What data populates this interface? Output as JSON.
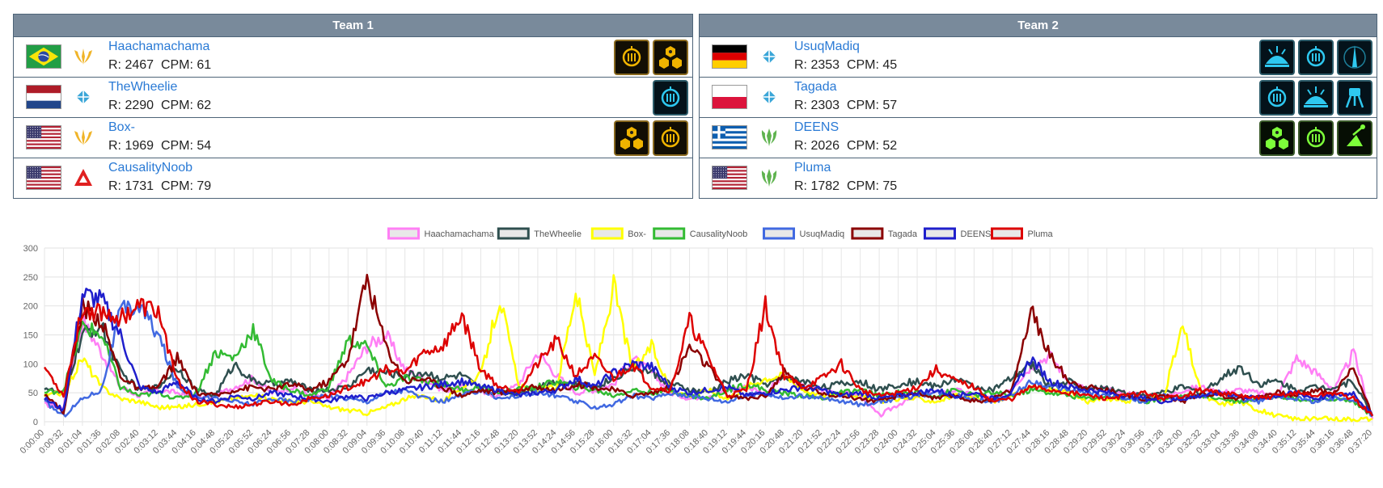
{
  "teams": [
    {
      "title": "Team 1",
      "players": [
        {
          "name": "Haachamachama",
          "rating": "2467",
          "cpm": "61",
          "flag": "brazil",
          "race": "protoss-icon",
          "units": [
            {
              "icon": "upgrade-icon",
              "style": "gold"
            },
            {
              "icon": "hexagon-cluster-icon",
              "style": "gold"
            }
          ]
        },
        {
          "name": "TheWheelie",
          "rating": "2290",
          "cpm": "62",
          "flag": "netherlands",
          "race": "terran-icon",
          "units": [
            {
              "icon": "upgrade-icon",
              "style": "cyan"
            }
          ]
        },
        {
          "name": "Box-",
          "rating": "1969",
          "cpm": "54",
          "flag": "usa",
          "race": "protoss-icon",
          "units": [
            {
              "icon": "hexagon-cluster-icon",
              "style": "gold"
            },
            {
              "icon": "upgrade-icon",
              "style": "gold"
            }
          ]
        },
        {
          "name": "CausalityNoob",
          "rating": "1731",
          "cpm": "79",
          "flag": "usa",
          "race": "random-icon",
          "units": []
        }
      ]
    },
    {
      "title": "Team 2",
      "players": [
        {
          "name": "UsuqMadiq",
          "rating": "2353",
          "cpm": "45",
          "flag": "germany",
          "race": "terran-icon",
          "units": [
            {
              "icon": "burst-icon",
              "style": "cyan"
            },
            {
              "icon": "upgrade-icon",
              "style": "cyan"
            },
            {
              "icon": "tower-icon",
              "style": "cyan"
            }
          ]
        },
        {
          "name": "Tagada",
          "rating": "2303",
          "cpm": "57",
          "flag": "poland",
          "race": "terran-icon",
          "units": [
            {
              "icon": "upgrade-icon",
              "style": "cyan"
            },
            {
              "icon": "burst-icon",
              "style": "cyan"
            },
            {
              "icon": "walker-icon",
              "style": "cyan"
            }
          ]
        },
        {
          "name": "DEENS",
          "rating": "2026",
          "cpm": "52",
          "flag": "greece",
          "race": "zerg-icon",
          "units": [
            {
              "icon": "hexagon-cluster-icon",
              "style": "green"
            },
            {
              "icon": "upgrade-icon",
              "style": "green"
            },
            {
              "icon": "antenna-icon",
              "style": "green"
            }
          ]
        },
        {
          "name": "Pluma",
          "rating": "1782",
          "cpm": "75",
          "flag": "usa",
          "race": "zerg-icon",
          "units": []
        }
      ]
    }
  ],
  "stats": {
    "rating_prefix": "R:",
    "cpm_prefix": "CPM:"
  },
  "chart_data": {
    "type": "line",
    "title": "",
    "xlabel": "",
    "ylabel": "",
    "ylim": [
      0,
      300
    ],
    "yticks": [
      0,
      50,
      100,
      150,
      200,
      250,
      300
    ],
    "grid": true,
    "legend_position": "top",
    "x_ticks": [
      "0:00:00",
      "0:00:32",
      "0:01:04",
      "0:01:36",
      "0:02:08",
      "0:02:40",
      "0:03:12",
      "0:03:44",
      "0:04:16",
      "0:04:48",
      "0:05:20",
      "0:05:52",
      "0:06:24",
      "0:06:56",
      "0:07:28",
      "0:08:00",
      "0:08:32",
      "0:09:04",
      "0:09:36",
      "0:10:08",
      "0:10:40",
      "0:11:12",
      "0:11:44",
      "0:12:16",
      "0:12:48",
      "0:13:20",
      "0:13:52",
      "0:14:24",
      "0:14:56",
      "0:15:28",
      "0:16:00",
      "0:16:32",
      "0:17:04",
      "0:17:36",
      "0:18:08",
      "0:18:40",
      "0:19:12",
      "0:19:44",
      "0:20:16",
      "0:20:48",
      "0:21:20",
      "0:21:52",
      "0:22:24",
      "0:22:56",
      "0:23:28",
      "0:24:00",
      "0:24:32",
      "0:25:04",
      "0:25:36",
      "0:26:08",
      "0:26:40",
      "0:27:12",
      "0:27:44",
      "0:28:16",
      "0:28:48",
      "0:29:20",
      "0:29:52",
      "0:30:24",
      "0:30:56",
      "0:31:28",
      "0:32:00",
      "0:32:32",
      "0:33:04",
      "0:33:36",
      "0:34:08",
      "0:34:40",
      "0:35:12",
      "0:35:44",
      "0:36:16",
      "0:36:48",
      "0:37:20"
    ],
    "x_seconds_at_keypoints_note": "",
    "series": [
      {
        "name": "Haachamachama",
        "color": "#ff7ff5",
        "values": [
          30,
          25,
          175,
          120,
          60,
          45,
          55,
          50,
          40,
          45,
          60,
          75,
          50,
          60,
          45,
          40,
          80,
          130,
          150,
          90,
          75,
          55,
          60,
          50,
          45,
          65,
          120,
          80,
          50,
          55,
          65,
          110,
          85,
          50,
          40,
          45,
          55,
          60,
          50,
          80,
          60,
          55,
          50,
          45,
          10,
          30,
          45,
          50,
          55,
          45,
          40,
          60,
          95,
          115,
          70,
          55,
          55,
          50,
          45,
          40,
          55,
          60,
          50,
          55,
          50,
          45,
          110,
          85,
          55,
          120,
          5
        ]
      },
      {
        "name": "TheWheelie",
        "color": "#2f4f4f",
        "values": [
          60,
          45,
          150,
          165,
          85,
          55,
          60,
          95,
          55,
          45,
          100,
          70,
          65,
          70,
          55,
          55,
          60,
          90,
          85,
          80,
          85,
          75,
          80,
          55,
          50,
          50,
          60,
          70,
          65,
          60,
          75,
          95,
          85,
          65,
          55,
          50,
          70,
          80,
          65,
          75,
          70,
          60,
          65,
          70,
          55,
          65,
          70,
          60,
          75,
          60,
          55,
          75,
          100,
          60,
          70,
          55,
          60,
          50,
          45,
          50,
          60,
          50,
          75,
          95,
          65,
          70,
          55,
          60,
          60,
          70,
          10
        ]
      },
      {
        "name": "Box-",
        "color": "#ffff00",
        "values": [
          45,
          50,
          110,
          60,
          40,
          35,
          25,
          25,
          30,
          35,
          40,
          45,
          40,
          35,
          35,
          25,
          20,
          15,
          25,
          40,
          45,
          35,
          60,
          80,
          215,
          60,
          55,
          60,
          225,
          80,
          235,
          90,
          130,
          55,
          45,
          55,
          40,
          60,
          75,
          80,
          55,
          45,
          50,
          45,
          35,
          40,
          40,
          35,
          45,
          40,
          35,
          45,
          60,
          55,
          50,
          35,
          40,
          35,
          40,
          45,
          165,
          45,
          30,
          35,
          20,
          10,
          5,
          5,
          5,
          5,
          5
        ]
      },
      {
        "name": "CausalityNoob",
        "color": "#33bb33",
        "values": [
          50,
          55,
          165,
          150,
          60,
          45,
          50,
          40,
          50,
          120,
          110,
          160,
          70,
          55,
          45,
          60,
          140,
          130,
          60,
          75,
          70,
          65,
          55,
          60,
          50,
          55,
          60,
          70,
          60,
          55,
          45,
          55,
          50,
          55,
          45,
          40,
          55,
          65,
          55,
          50,
          45,
          40,
          50,
          55,
          45,
          50,
          50,
          45,
          55,
          45,
          50,
          45,
          55,
          50,
          45,
          40,
          45,
          40,
          35,
          40,
          45,
          45,
          40,
          35,
          40,
          45,
          40,
          35,
          40,
          35,
          10
        ]
      },
      {
        "name": "UsuqMadiq",
        "color": "#4169e1",
        "values": [
          35,
          10,
          40,
          55,
          190,
          200,
          150,
          60,
          45,
          40,
          35,
          30,
          40,
          35,
          40,
          45,
          40,
          35,
          50,
          55,
          40,
          35,
          45,
          55,
          40,
          45,
          50,
          45,
          35,
          25,
          30,
          45,
          40,
          50,
          45,
          40,
          35,
          45,
          50,
          40,
          45,
          40,
          35,
          30,
          35,
          40,
          45,
          50,
          45,
          40,
          35,
          45,
          70,
          60,
          55,
          50,
          45,
          40,
          35,
          45,
          40,
          45,
          50,
          40,
          35,
          45,
          40,
          35,
          40,
          40,
          10
        ]
      },
      {
        "name": "Tagada",
        "color": "#8b0000",
        "values": [
          50,
          15,
          200,
          175,
          80,
          55,
          60,
          110,
          50,
          45,
          55,
          60,
          55,
          65,
          55,
          70,
          110,
          250,
          130,
          70,
          75,
          60,
          45,
          55,
          50,
          55,
          60,
          55,
          65,
          60,
          55,
          45,
          50,
          60,
          130,
          95,
          45,
          40,
          45,
          85,
          60,
          50,
          45,
          40,
          35,
          45,
          50,
          40,
          45,
          35,
          40,
          55,
          190,
          115,
          70,
          60,
          55,
          45,
          40,
          45,
          35,
          50,
          45,
          40,
          45,
          50,
          45,
          55,
          50,
          95,
          10
        ]
      },
      {
        "name": "DEENS",
        "color": "#1f1fcc",
        "values": [
          40,
          20,
          220,
          210,
          150,
          60,
          50,
          70,
          40,
          35,
          45,
          40,
          50,
          45,
          40,
          35,
          45,
          40,
          50,
          55,
          60,
          65,
          70,
          60,
          55,
          45,
          50,
          55,
          75,
          60,
          85,
          100,
          95,
          60,
          50,
          55,
          60,
          45,
          50,
          55,
          60,
          55,
          45,
          50,
          40,
          45,
          50,
          55,
          45,
          50,
          40,
          50,
          110,
          70,
          60,
          55,
          50,
          45,
          40,
          35,
          40,
          45,
          50,
          45,
          40,
          45,
          50,
          40,
          45,
          50,
          10
        ]
      },
      {
        "name": "Pluma",
        "color": "#dd0000",
        "values": [
          95,
          45,
          195,
          190,
          180,
          200,
          190,
          70,
          35,
          30,
          25,
          30,
          35,
          30,
          40,
          45,
          60,
          70,
          90,
          85,
          120,
          130,
          185,
          90,
          60,
          55,
          100,
          140,
          80,
          110,
          75,
          100,
          60,
          55,
          175,
          110,
          45,
          55,
          200,
          80,
          60,
          75,
          100,
          55,
          45,
          50,
          60,
          90,
          70,
          60,
          35,
          40,
          60,
          55,
          50,
          45,
          40,
          45,
          50,
          40,
          45,
          55,
          50,
          45,
          40,
          45,
          50,
          45,
          50,
          40,
          10
        ]
      }
    ]
  }
}
